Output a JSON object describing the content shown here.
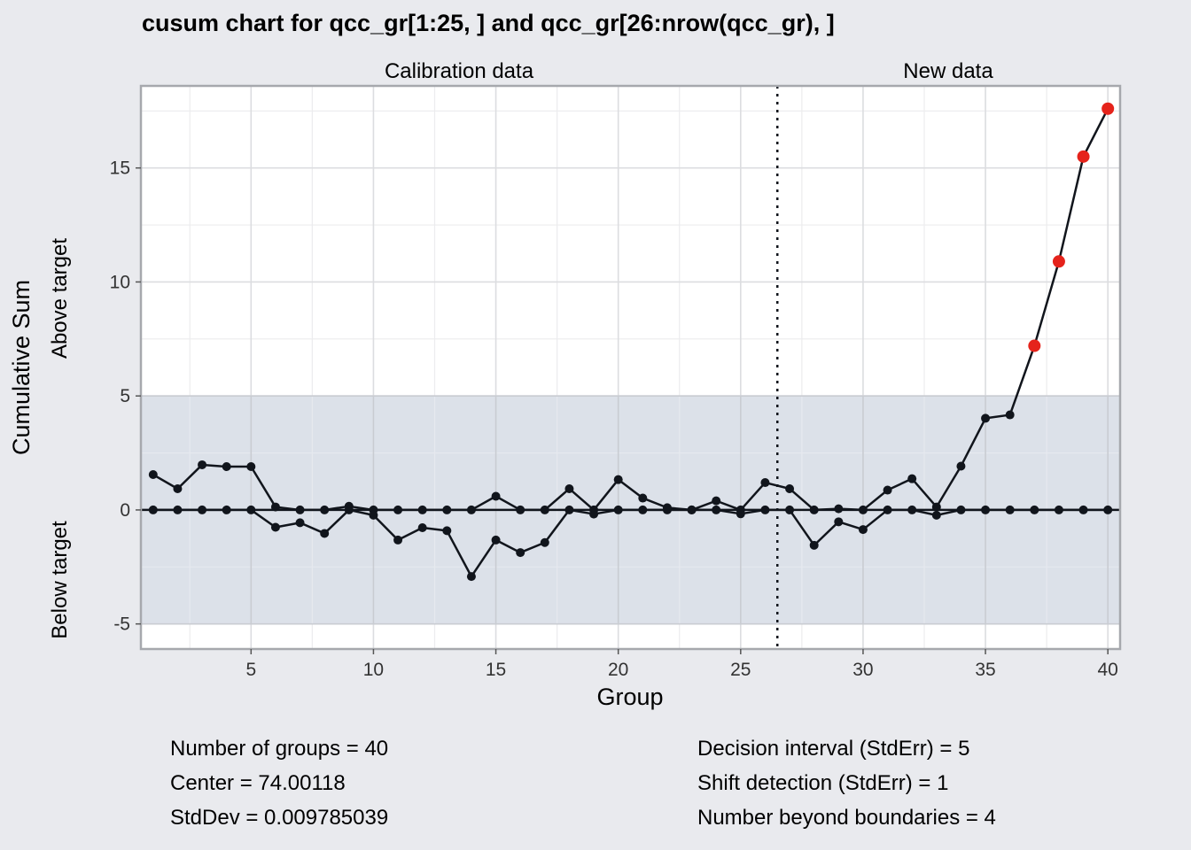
{
  "chart_data": {
    "type": "line",
    "title": "cusum chart for qcc_gr[1:25, ] and qcc_gr[26:nrow(qcc_gr), ]",
    "xlabel": "Group",
    "ylabel": "Cumulative Sum",
    "ylabel_upper": "Above target",
    "ylabel_lower": "Below target",
    "section_labels": [
      "Calibration data",
      "New data"
    ],
    "phase_split_after": 26,
    "xlim": [
      0.5,
      40.5
    ],
    "ylim": [
      -6.1,
      18.6
    ],
    "x_ticks": [
      5,
      10,
      15,
      20,
      25,
      30,
      35,
      40
    ],
    "y_ticks": [
      -5,
      0,
      5,
      10,
      15
    ],
    "decision_limits": [
      -5,
      5
    ],
    "grid": true,
    "series": [
      {
        "x": [
          1,
          2,
          3,
          4,
          5,
          6,
          7,
          8,
          9,
          10,
          11,
          12,
          13,
          14,
          15,
          16,
          17,
          18,
          19,
          20,
          21,
          22,
          23,
          24,
          25,
          26,
          27,
          28,
          29,
          30,
          31,
          32,
          33,
          34,
          35,
          36,
          37,
          38,
          39,
          40
        ],
        "values": [
          1.55,
          0.93,
          1.98,
          1.9,
          1.9,
          0.13,
          0,
          0,
          0.16,
          0,
          0,
          0,
          0,
          0,
          0.6,
          0,
          0,
          0.93,
          0,
          1.33,
          0.52,
          0.1,
          0,
          0.4,
          0,
          1.2,
          0.93,
          0,
          0.05,
          0,
          0.87,
          1.37,
          0.13,
          1.92,
          4.02,
          4.17,
          7.2,
          10.9,
          15.5,
          17.6
        ]
      },
      {
        "x": [
          1,
          2,
          3,
          4,
          5,
          6,
          7,
          8,
          9,
          10,
          11,
          12,
          13,
          14,
          15,
          16,
          17,
          18,
          19,
          20,
          21,
          22,
          23,
          24,
          25,
          26,
          27,
          28,
          29,
          30,
          31,
          32,
          33,
          34,
          35,
          36,
          37,
          38,
          39,
          40
        ],
        "values": [
          0,
          0,
          0,
          0,
          0,
          -0.76,
          -0.56,
          -1.03,
          0,
          -0.23,
          -1.32,
          -0.78,
          -0.91,
          -2.92,
          -1.32,
          -1.87,
          -1.43,
          0,
          -0.18,
          0,
          0,
          0,
          0,
          0,
          -0.17,
          0,
          0,
          -1.55,
          -0.52,
          -0.86,
          0,
          0,
          -0.23,
          0,
          0,
          0,
          0,
          0,
          0,
          0
        ]
      }
    ],
    "beyond_limit_points": [
      37,
      38,
      39,
      40
    ],
    "colors": {
      "background": "#e9eaee",
      "panel": "#ffffff",
      "limit_band": "#dce1e9",
      "line": "#11151c",
      "violation": "#e5231b"
    }
  },
  "stats_left": [
    "Number of groups = 40",
    "Center = 74.00118",
    "StdDev = 0.009785039"
  ],
  "stats_right": [
    "Decision interval (StdErr) = 5",
    "Shift detection (StdErr) = 1",
    "Number beyond boundaries = 4"
  ]
}
